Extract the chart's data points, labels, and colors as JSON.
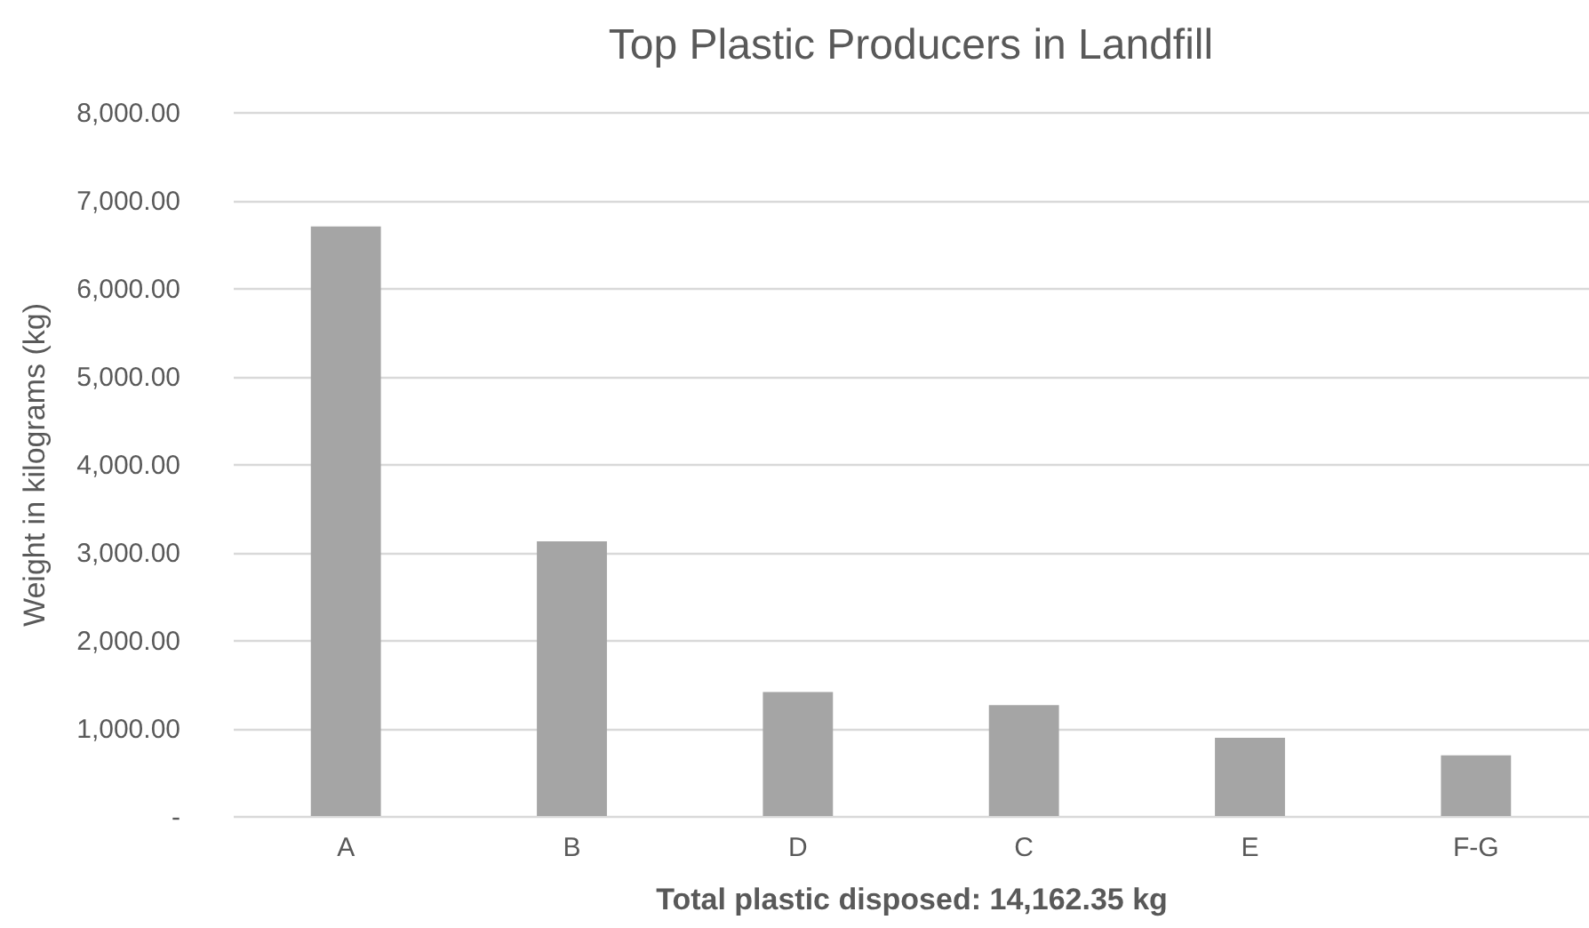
{
  "chart_data": {
    "type": "bar",
    "title": "Top Plastic Producers in Landfill",
    "xlabel": "Total plastic disposed: 14,162.35 kg",
    "ylabel": "Weight in kilograms (kg)",
    "categories": [
      "A",
      "B",
      "D",
      "C",
      "E",
      "F-G"
    ],
    "values": [
      6700,
      3120,
      1410,
      1260,
      890,
      690
    ],
    "color": "#a5a5a5",
    "ylim": [
      0,
      8000
    ],
    "yticks": [
      {
        "value": 0,
        "label": "-"
      },
      {
        "value": 1000,
        "label": "1,000.00"
      },
      {
        "value": 2000,
        "label": "2,000.00"
      },
      {
        "value": 3000,
        "label": "3,000.00"
      },
      {
        "value": 4000,
        "label": "4,000.00"
      },
      {
        "value": 5000,
        "label": "5,000.00"
      },
      {
        "value": 6000,
        "label": "6,000.00"
      },
      {
        "value": 7000,
        "label": "7,000.00"
      },
      {
        "value": 8000,
        "label": "8,000.00"
      }
    ],
    "grid": "y"
  }
}
